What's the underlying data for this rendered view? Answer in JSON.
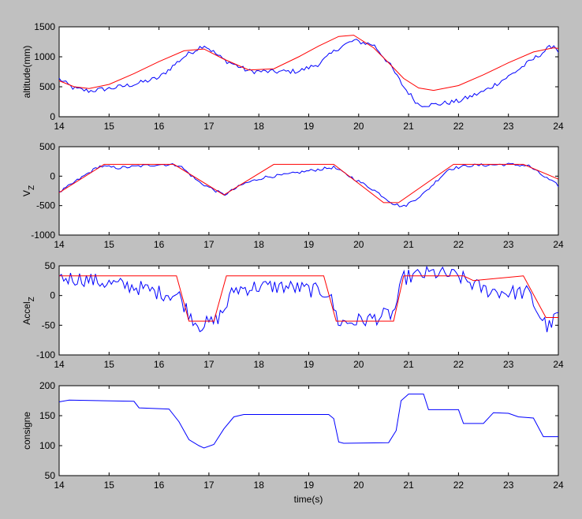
{
  "figure": {
    "background": "#c0c0c0",
    "axes_background": "#ffffff",
    "xlabel": "time(s)"
  },
  "chart_data": [
    {
      "type": "line",
      "ylabel": "altitude(mm)",
      "ylabel_sub": "",
      "xlim": [
        14,
        24
      ],
      "ylim": [
        0,
        1500
      ],
      "xticks": [
        14,
        15,
        16,
        17,
        18,
        19,
        20,
        21,
        22,
        23,
        24
      ],
      "yticks": [
        0,
        500,
        1000,
        1500
      ],
      "grid": false,
      "series": [
        {
          "color": "#0000ff",
          "noise": 40,
          "x": [
            14,
            14.3,
            14.6,
            15,
            15.5,
            16,
            16.5,
            16.9,
            17.3,
            17.8,
            18.3,
            18.8,
            19.2,
            19.6,
            19.9,
            20.3,
            20.6,
            20.9,
            21.2,
            21.5,
            22,
            22.5,
            23,
            23.5,
            23.9,
            24
          ],
          "y": [
            630,
            470,
            430,
            470,
            540,
            650,
            1000,
            1200,
            950,
            760,
            750,
            760,
            880,
            1150,
            1270,
            1200,
            900,
            500,
            200,
            200,
            260,
            420,
            670,
            960,
            1200,
            1100
          ]
        },
        {
          "color": "#ff0000",
          "noise": 0,
          "x": [
            14,
            14.3,
            14.6,
            15,
            15.5,
            16,
            16.5,
            16.9,
            17.3,
            17.8,
            18.3,
            18.8,
            19.2,
            19.6,
            19.9,
            20.3,
            20.6,
            20.9,
            21.2,
            21.5,
            22,
            22.5,
            23,
            23.5,
            23.9,
            24
          ],
          "y": [
            600,
            500,
            470,
            540,
            720,
            920,
            1100,
            1130,
            960,
            780,
            800,
            1000,
            1180,
            1340,
            1360,
            1150,
            900,
            640,
            480,
            440,
            520,
            700,
            900,
            1080,
            1150,
            1140
          ]
        }
      ]
    },
    {
      "type": "line",
      "ylabel": "V",
      "ylabel_sub": "Z",
      "xlim": [
        14,
        24
      ],
      "ylim": [
        -1000,
        500
      ],
      "xticks": [
        14,
        15,
        16,
        17,
        18,
        19,
        20,
        21,
        22,
        23,
        24
      ],
      "yticks": [
        -1000,
        -500,
        0,
        500
      ],
      "grid": false,
      "series": [
        {
          "color": "#0000ff",
          "noise": 25,
          "x": [
            14,
            14.4,
            14.8,
            15.2,
            15.6,
            16,
            16.4,
            16.8,
            17.3,
            17.7,
            18.1,
            18.5,
            19,
            19.5,
            19.9,
            20.3,
            20.7,
            20.9,
            21.3,
            21.8,
            22.2,
            22.6,
            23,
            23.4,
            23.7,
            24
          ],
          "y": [
            -280,
            -50,
            170,
            140,
            170,
            200,
            190,
            -100,
            -320,
            -130,
            -20,
            20,
            90,
            150,
            -40,
            -230,
            -470,
            -520,
            -300,
            120,
            180,
            190,
            200,
            180,
            0,
            -160
          ]
        },
        {
          "color": "#ff0000",
          "noise": 0,
          "x": [
            14,
            14.9,
            16.3,
            17.3,
            18.3,
            19.5,
            20.5,
            20.8,
            21.9,
            23.3,
            24
          ],
          "y": [
            -280,
            200,
            200,
            -320,
            200,
            200,
            -450,
            -450,
            200,
            200,
            -50
          ]
        }
      ]
    },
    {
      "type": "line",
      "ylabel": "Accel",
      "ylabel_sub": "Z",
      "xlim": [
        14,
        24
      ],
      "ylim": [
        -100,
        50
      ],
      "xticks": [
        14,
        15,
        16,
        17,
        18,
        19,
        20,
        21,
        22,
        23,
        24
      ],
      "yticks": [
        -100,
        -50,
        0,
        50
      ],
      "grid": false,
      "series": [
        {
          "color": "#0000ff",
          "noise": 13,
          "x": [
            14,
            14.5,
            15,
            15.5,
            16,
            16.4,
            16.6,
            16.8,
            17.1,
            17.3,
            17.5,
            18,
            18.5,
            19,
            19.4,
            19.6,
            19.8,
            20.2,
            20.7,
            20.9,
            21.5,
            22,
            22.5,
            23,
            23.4,
            23.6,
            23.8,
            24
          ],
          "y": [
            30,
            28,
            20,
            15,
            5,
            0,
            -30,
            -50,
            -45,
            -25,
            10,
            15,
            15,
            10,
            5,
            -45,
            -45,
            -40,
            -30,
            30,
            38,
            32,
            10,
            5,
            5,
            -30,
            -55,
            -30
          ]
        },
        {
          "color": "#ff0000",
          "noise": 0,
          "x": [
            14,
            16.35,
            16.6,
            17.1,
            17.35,
            19.3,
            19.55,
            20.7,
            20.9,
            22.1,
            22.3,
            23.3,
            23.75,
            24
          ],
          "y": [
            33,
            33,
            -43,
            -43,
            33,
            33,
            -43,
            -43,
            33,
            33,
            25,
            33,
            -37,
            -37
          ]
        }
      ]
    },
    {
      "type": "line",
      "ylabel": "consigne",
      "ylabel_sub": "",
      "xlim": [
        14,
        24
      ],
      "ylim": [
        50,
        200
      ],
      "xticks": [
        14,
        15,
        16,
        17,
        18,
        19,
        20,
        21,
        22,
        23,
        24
      ],
      "yticks": [
        50,
        100,
        150,
        200
      ],
      "grid": false,
      "series": [
        {
          "color": "#0000ff",
          "noise": 0,
          "x": [
            14,
            14.2,
            15.5,
            15.6,
            16.2,
            16.4,
            16.6,
            16.8,
            16.9,
            17.1,
            17.3,
            17.5,
            17.7,
            18,
            19.4,
            19.5,
            19.6,
            19.7,
            20.6,
            20.75,
            20.85,
            21,
            21.3,
            21.4,
            22,
            22.1,
            22.5,
            22.7,
            23,
            23.2,
            23.5,
            23.7,
            24
          ],
          "y": [
            173,
            176,
            174,
            163,
            161,
            140,
            110,
            100,
            96,
            102,
            128,
            148,
            152,
            152,
            152,
            145,
            106,
            104,
            105,
            125,
            175,
            186,
            186,
            160,
            160,
            137,
            137,
            155,
            154,
            148,
            146,
            115,
            115
          ]
        }
      ]
    }
  ]
}
